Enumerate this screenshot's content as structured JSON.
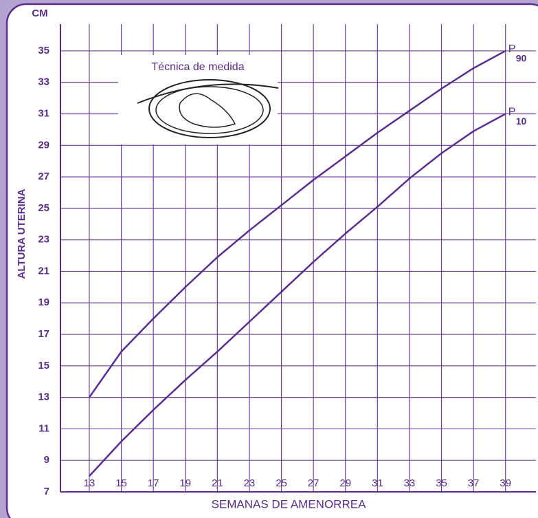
{
  "chart_data": {
    "type": "line",
    "y_unit": "CM",
    "inset_title": "Técnica de medida",
    "x_label": "SEMANAS DE AMENORREA",
    "y_label": "ALTURA UTERINA",
    "x": [
      13,
      15,
      17,
      19,
      21,
      23,
      25,
      27,
      29,
      31,
      33,
      35,
      37,
      39
    ],
    "series": [
      {
        "label": "P",
        "subscript": "90",
        "color": "#5a2d8c",
        "values": [
          13,
          15.9,
          18,
          20,
          21.9,
          23.6,
          25.2,
          26.8,
          28.3,
          29.8,
          31.2,
          32.6,
          33.9,
          35
        ]
      },
      {
        "label": "P",
        "subscript": "10",
        "color": "#5a2d8c",
        "values": [
          8,
          10.2,
          12.2,
          14.1,
          15.9,
          17.8,
          19.7,
          21.6,
          23.4,
          25.1,
          26.9,
          28.5,
          29.9,
          31
        ]
      }
    ],
    "xlim": [
      11.2,
      40.9
    ],
    "ylim": [
      7,
      36.7
    ],
    "xticks": [
      13,
      15,
      17,
      19,
      21,
      23,
      25,
      27,
      29,
      31,
      33,
      35,
      37,
      39
    ],
    "yticks": [
      7,
      9,
      11,
      13,
      15,
      17,
      19,
      21,
      23,
      25,
      27,
      29,
      31,
      33,
      35
    ],
    "grid": true
  }
}
